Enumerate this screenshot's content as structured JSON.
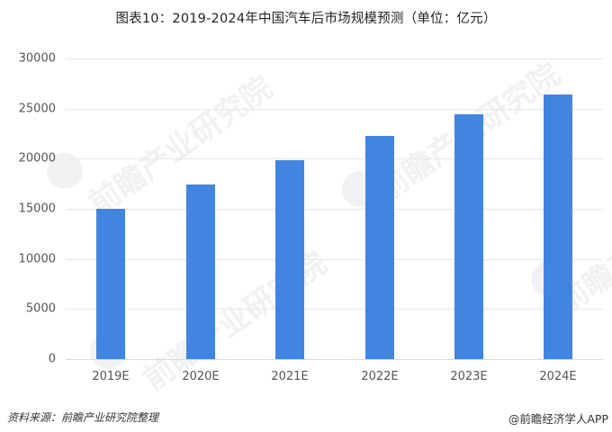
{
  "title": "图表10：2019-2024年中国汽车后市场规模预测（单位：亿元）",
  "chart_data": {
    "type": "bar",
    "title": "图表10：2019-2024年中国汽车后市场规模预测（单位：亿元）",
    "xlabel": "",
    "ylabel": "亿元",
    "categories": [
      "2019E",
      "2020E",
      "2021E",
      "2022E",
      "2023E",
      "2024E"
    ],
    "values": [
      15000,
      17450,
      19850,
      22250,
      24450,
      26400
    ],
    "ylim": [
      0,
      30000
    ],
    "yticks": [
      0,
      5000,
      10000,
      15000,
      20000,
      25000,
      30000
    ],
    "grid": true,
    "legend": null,
    "bar_color": "#4285e0"
  },
  "yticks": [
    "30000",
    "25000",
    "20000",
    "15000",
    "10000",
    "5000",
    "0"
  ],
  "xticks": [
    "2019E",
    "2020E",
    "2021E",
    "2022E",
    "2023E",
    "2024E"
  ],
  "watermark": "前瞻产业研究院",
  "footer": {
    "source": "资料来源：前瞻产业研究院整理",
    "credit": "@前瞻经济学人APP"
  }
}
